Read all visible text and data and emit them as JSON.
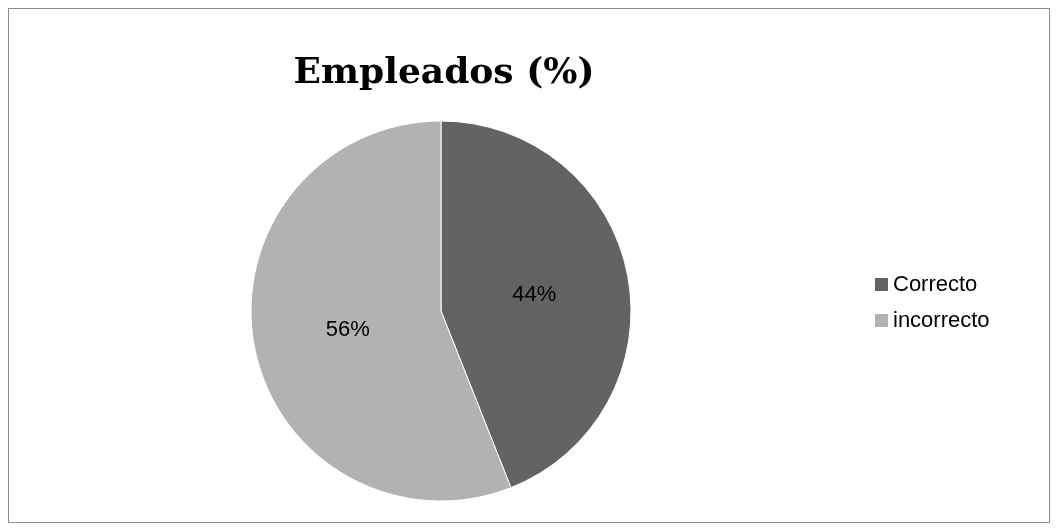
{
  "chart_data": {
    "type": "pie",
    "title": "Empleados (%)",
    "categories": [
      "Correcto",
      "incorrecto"
    ],
    "values": [
      44,
      56
    ],
    "colors": [
      "#636363",
      "#b2b2b2"
    ],
    "value_labels": [
      "44%",
      "56%"
    ],
    "legend": "right"
  }
}
